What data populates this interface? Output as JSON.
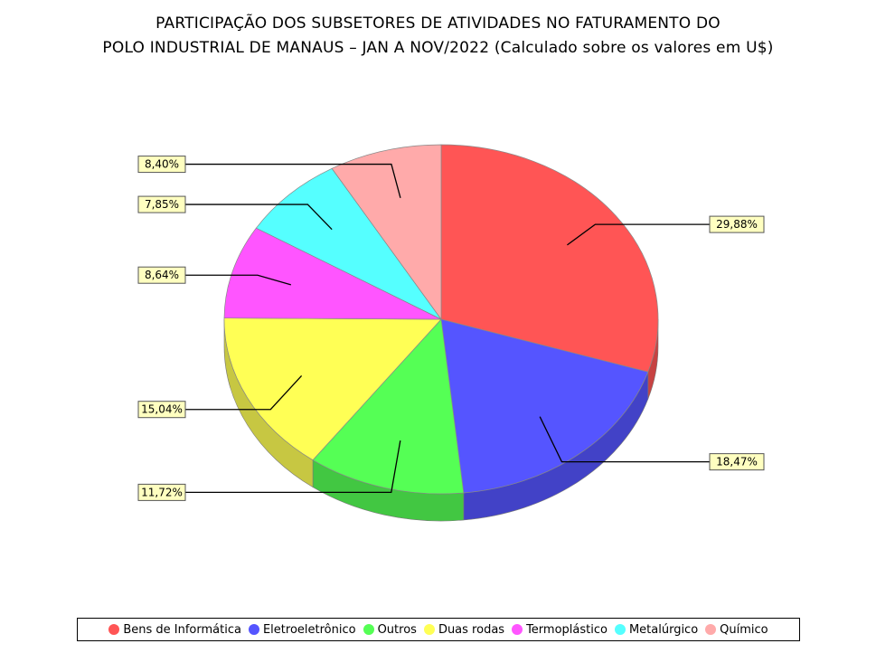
{
  "title_line1": "PARTICIPAÇÃO DOS SUBSETORES DE ATIVIDADES NO FATURAMENTO DO",
  "title_line2": "POLO INDUSTRIAL DE MANAUS – JAN A NOV/2022 (Calculado sobre os valores em U$)",
  "chart_data": {
    "type": "pie",
    "title": "PARTICIPAÇÃO DOS SUBSETORES DE ATIVIDADES NO FATURAMENTO DO POLO INDUSTRIAL DE MANAUS – JAN A NOV/2022 (Calculado sobre os valores em U$)",
    "legend_position": "bottom",
    "slices": [
      {
        "name": "Bens de Informática",
        "value": 29.88,
        "label": "29,88%",
        "color": "#ff5555"
      },
      {
        "name": "Eletroeletrônico",
        "value": 18.47,
        "label": "18,47%",
        "color": "#5555ff"
      },
      {
        "name": "Outros",
        "value": 11.72,
        "label": "11,72%",
        "color": "#55ff55"
      },
      {
        "name": "Duas rodas",
        "value": 15.04,
        "label": "15,04%",
        "color": "#ffff55"
      },
      {
        "name": "Termoplástico",
        "value": 8.64,
        "label": "8,64%",
        "color": "#ff55ff"
      },
      {
        "name": "Metalúrgico",
        "value": 7.85,
        "label": "7,85%",
        "color": "#55ffff"
      },
      {
        "name": "Químico",
        "value": 8.4,
        "label": "8,40%",
        "color": "#ffaaaa"
      }
    ]
  }
}
